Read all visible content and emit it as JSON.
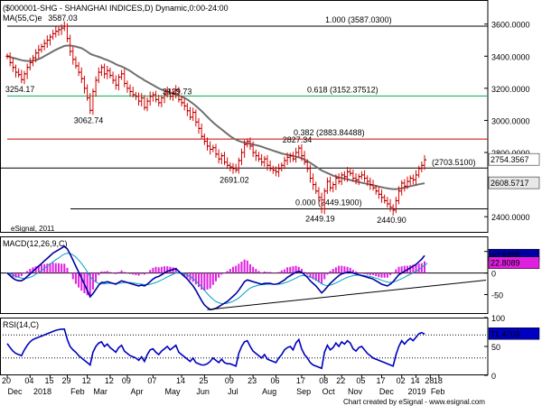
{
  "chart_data": [
    {
      "type": "line",
      "panel": "price",
      "title": "($000001-SHG - SHANGHAI INDICES,D) Dynamic,0:00-24:00",
      "ma_label": "MA(55,C)e",
      "watermark": "eSignal, 2011",
      "ylim": [
        2300,
        3750
      ],
      "y_ticks": [
        {
          "v": 3600,
          "text": "3600.0000"
        },
        {
          "v": 3400,
          "text": "3400.0000"
        },
        {
          "v": 3200,
          "text": "3200.0000"
        },
        {
          "v": 3000,
          "text": "3000.0000"
        },
        {
          "v": 2800,
          "text": "2800.0000"
        },
        {
          "v": 2400,
          "text": "2400.0000"
        }
      ],
      "last_price": {
        "v": 2754.3567,
        "text": "2754.3567"
      },
      "ma_last": {
        "v": 2608.5717,
        "text": "2608.5717"
      },
      "fib_levels": [
        {
          "v": 3587.03,
          "text": "1.000 (3587.0300)",
          "color": "#000000"
        },
        {
          "v": 3152.37512,
          "text": "0.618 (3152.37512)",
          "color": "#00b050"
        },
        {
          "v": 2883.84488,
          "text": "0.382 (2883.84488)",
          "color": "#cc0000"
        },
        {
          "v": 2449.19,
          "text": "0.000 (2449.1900)",
          "color": "#000000"
        }
      ],
      "resistance": {
        "v": 2703.51,
        "text": "(2703.5100)"
      },
      "annotations": [
        {
          "i": 20,
          "v": 3587.03,
          "text": "3587.03",
          "pos": "above"
        },
        {
          "i": 5,
          "v": 3254.17,
          "text": "3254.17",
          "pos": "below"
        },
        {
          "i": 29,
          "v": 3062.74,
          "text": "3062.74",
          "pos": "below"
        },
        {
          "i": 60,
          "v": 3129.73,
          "text": "3129.73",
          "pos": "above"
        },
        {
          "i": 80,
          "v": 2691.02,
          "text": "2691.02",
          "pos": "below"
        },
        {
          "i": 102,
          "v": 2827.34,
          "text": "2827.34",
          "pos": "above"
        },
        {
          "i": 110,
          "v": 2449.19,
          "text": "2449.19",
          "pos": "below"
        },
        {
          "i": 135,
          "v": 2440.9,
          "text": "2440.90",
          "pos": "below"
        }
      ],
      "price_series": [
        3400,
        3360,
        3330,
        3300,
        3285,
        3254.17,
        3290,
        3330,
        3360,
        3390,
        3420,
        3440,
        3460,
        3480,
        3500,
        3520,
        3540,
        3555,
        3565,
        3575,
        3587.03,
        3510,
        3430,
        3380,
        3340,
        3300,
        3260,
        3200,
        3140,
        3062.74,
        3180,
        3250,
        3300,
        3330,
        3290,
        3310,
        3280,
        3250,
        3220,
        3270,
        3290,
        3230,
        3200,
        3180,
        3160,
        3150,
        3120,
        3140,
        3080,
        3120,
        3150,
        3160,
        3130,
        3110,
        3140,
        3160,
        3180,
        3150,
        3170,
        3190,
        3129.73,
        3110,
        3090,
        3060,
        3020,
        3050,
        2990,
        2950,
        2900,
        2870,
        2840,
        2820,
        2830,
        2790,
        2760,
        2780,
        2740,
        2720,
        2710,
        2700,
        2691.02,
        2750,
        2800,
        2850,
        2870,
        2840,
        2800,
        2780,
        2760,
        2740,
        2760,
        2720,
        2700,
        2690,
        2680,
        2700,
        2720,
        2750,
        2770,
        2780,
        2760,
        2800,
        2827.34,
        2780,
        2740,
        2700,
        2640,
        2600,
        2560,
        2520,
        2449.19,
        2560,
        2620,
        2580,
        2600,
        2640,
        2620,
        2660,
        2650,
        2680,
        2670,
        2640,
        2630,
        2650,
        2660,
        2640,
        2620,
        2600,
        2580,
        2560,
        2540,
        2520,
        2500,
        2480,
        2460,
        2440.9,
        2500,
        2560,
        2610,
        2590,
        2620,
        2640,
        2630,
        2660,
        2700,
        2720,
        2754.3567
      ],
      "ma_series": [
        3400,
        3395,
        3390,
        3385,
        3380,
        3375,
        3372,
        3370,
        3370,
        3372,
        3376,
        3382,
        3390,
        3400,
        3410,
        3420,
        3430,
        3440,
        3448,
        3456,
        3464,
        3466,
        3466,
        3464,
        3460,
        3455,
        3450,
        3440,
        3428,
        3415,
        3408,
        3402,
        3396,
        3390,
        3382,
        3376,
        3368,
        3360,
        3350,
        3342,
        3336,
        3328,
        3318,
        3308,
        3296,
        3284,
        3272,
        3262,
        3250,
        3240,
        3230,
        3220,
        3210,
        3200,
        3192,
        3186,
        3180,
        3174,
        3168,
        3162,
        3156,
        3148,
        3140,
        3130,
        3118,
        3104,
        3090,
        3074,
        3058,
        3040,
        3022,
        3004,
        2988,
        2972,
        2958,
        2944,
        2930,
        2916,
        2902,
        2890,
        2880,
        2872,
        2866,
        2862,
        2858,
        2854,
        2850,
        2846,
        2842,
        2836,
        2830,
        2824,
        2818,
        2812,
        2806,
        2800,
        2794,
        2790,
        2786,
        2782,
        2778,
        2774,
        2770,
        2764,
        2756,
        2746,
        2736,
        2724,
        2712,
        2700,
        2688,
        2680,
        2672,
        2664,
        2656,
        2650,
        2645,
        2641,
        2637,
        2633,
        2629,
        2624,
        2620,
        2616,
        2612,
        2608,
        2604,
        2600,
        2596,
        2592,
        2588,
        2584,
        2580,
        2577,
        2574,
        2572,
        2572,
        2574,
        2577,
        2581,
        2585,
        2590,
        2594,
        2598,
        2602,
        2605,
        2608.5717
      ]
    },
    {
      "type": "line",
      "panel": "macd",
      "title": "MACD(12,26,9,C)",
      "ylim": [
        -95,
        85
      ],
      "y_ticks": [
        {
          "v": 50,
          "text": "50"
        },
        {
          "v": 0,
          "text": "0"
        },
        {
          "v": -50,
          "text": "-50"
        }
      ],
      "macd_last": {
        "v": 40.6458,
        "text": "40.6458"
      },
      "signal_last": {
        "v": 22.8089,
        "text": "22.8089"
      },
      "trendline": {
        "from": [
          70,
          -85
        ],
        "to": [
          158,
          -25
        ]
      },
      "macd_series": [
        0,
        -6,
        -12,
        -16,
        -18,
        -18,
        -14,
        -8,
        -2,
        4,
        10,
        16,
        22,
        28,
        34,
        40,
        46,
        50,
        54,
        58,
        62,
        56,
        44,
        30,
        16,
        2,
        -12,
        -26,
        -40,
        -55,
        -48,
        -38,
        -28,
        -22,
        -22,
        -20,
        -22,
        -24,
        -26,
        -22,
        -18,
        -20,
        -22,
        -24,
        -26,
        -28,
        -30,
        -28,
        -30,
        -26,
        -20,
        -14,
        -10,
        -8,
        -4,
        0,
        4,
        6,
        8,
        10,
        4,
        -2,
        -8,
        -14,
        -22,
        -30,
        -40,
        -52,
        -64,
        -74,
        -80,
        -85,
        -84,
        -82,
        -78,
        -74,
        -70,
        -66,
        -60,
        -54,
        -48,
        -40,
        -30,
        -20,
        -16,
        -18,
        -20,
        -22,
        -24,
        -26,
        -24,
        -24,
        -24,
        -26,
        -26,
        -24,
        -20,
        -16,
        -10,
        -6,
        -2,
        2,
        4,
        2,
        -4,
        -10,
        -18,
        -24,
        -30,
        -38,
        -46,
        -40,
        -32,
        -24,
        -18,
        -12,
        -6,
        -2,
        0,
        2,
        2,
        0,
        -2,
        -4,
        -6,
        -8,
        -10,
        -12,
        -14,
        -18,
        -22,
        -26,
        -28,
        -30,
        -26,
        -20,
        -12,
        -4,
        0,
        4,
        8,
        12,
        16,
        20,
        26,
        32,
        40.6458
      ],
      "signal_series": [
        0,
        -1,
        -4,
        -7,
        -10,
        -12,
        -13,
        -12,
        -10,
        -7,
        -3,
        1,
        6,
        11,
        16,
        21,
        26,
        31,
        35,
        40,
        44,
        46,
        45,
        42,
        37,
        30,
        22,
        13,
        3,
        -8,
        -16,
        -21,
        -24,
        -25,
        -25,
        -24,
        -24,
        -24,
        -24,
        -24,
        -23,
        -22,
        -22,
        -22,
        -23,
        -24,
        -25,
        -26,
        -27,
        -27,
        -26,
        -24,
        -22,
        -19,
        -16,
        -13,
        -9,
        -6,
        -3,
        0,
        1,
        0,
        -2,
        -5,
        -8,
        -13,
        -18,
        -25,
        -32,
        -40,
        -48,
        -55,
        -61,
        -66,
        -69,
        -71,
        -71,
        -70,
        -68,
        -66,
        -62,
        -58,
        -52,
        -46,
        -40,
        -35,
        -32,
        -30,
        -28,
        -27,
        -27,
        -26,
        -26,
        -26,
        -26,
        -26,
        -25,
        -23,
        -21,
        -18,
        -15,
        -12,
        -8,
        -6,
        -6,
        -7,
        -9,
        -12,
        -15,
        -20,
        -25,
        -28,
        -29,
        -28,
        -26,
        -23,
        -20,
        -16,
        -13,
        -10,
        -8,
        -6,
        -5,
        -5,
        -5,
        -6,
        -7,
        -8,
        -10,
        -12,
        -14,
        -17,
        -19,
        -21,
        -22,
        -21,
        -19,
        -16,
        -13,
        -10,
        -6,
        -3,
        0,
        4,
        8,
        13,
        18,
        22.8089
      ]
    },
    {
      "type": "line",
      "panel": "rsi",
      "title": "RSI(14,C)",
      "ylim": [
        0,
        100
      ],
      "y_ticks": [
        {
          "v": 100,
          "text": "100"
        },
        {
          "v": 50,
          "text": "50"
        },
        {
          "v": 0,
          "text": "0"
        }
      ],
      "levels": [
        70,
        30
      ],
      "rsi_last": {
        "v": 71.4703,
        "text": "71.4703"
      },
      "rsi_series": [
        55,
        48,
        42,
        38,
        36,
        34,
        44,
        52,
        58,
        62,
        64,
        66,
        68,
        70,
        72,
        74,
        76,
        78,
        79,
        80,
        80,
        62,
        50,
        44,
        40,
        34,
        30,
        26,
        22,
        18,
        40,
        50,
        56,
        58,
        50,
        54,
        48,
        44,
        40,
        48,
        52,
        42,
        38,
        34,
        32,
        30,
        26,
        32,
        24,
        36,
        44,
        46,
        40,
        36,
        42,
        46,
        50,
        44,
        48,
        52,
        40,
        36,
        32,
        28,
        24,
        30,
        22,
        20,
        18,
        18,
        20,
        24,
        30,
        26,
        22,
        28,
        22,
        20,
        20,
        18,
        16,
        38,
        50,
        58,
        60,
        50,
        42,
        38,
        34,
        30,
        36,
        28,
        26,
        24,
        22,
        30,
        36,
        44,
        48,
        50,
        44,
        56,
        62,
        46,
        36,
        30,
        22,
        18,
        16,
        14,
        12,
        40,
        52,
        44,
        48,
        56,
        50,
        58,
        54,
        60,
        56,
        46,
        42,
        48,
        50,
        44,
        38,
        34,
        30,
        28,
        26,
        24,
        22,
        20,
        18,
        16,
        36,
        50,
        60,
        54,
        60,
        64,
        60,
        66,
        72,
        74,
        71.4703
      ]
    },
    {
      "type": "axis",
      "panel": "time",
      "day_ticks": [
        {
          "i": 0,
          "text": "20"
        },
        {
          "i": 8,
          "text": "04"
        },
        {
          "i": 15,
          "text": "15"
        },
        {
          "i": 21,
          "text": "29"
        },
        {
          "i": 28,
          "text": "12"
        },
        {
          "i": 36,
          "text": "12"
        },
        {
          "i": 42,
          "text": "09"
        },
        {
          "i": 51,
          "text": "07"
        },
        {
          "i": 61,
          "text": "14"
        },
        {
          "i": 69,
          "text": "25"
        },
        {
          "i": 78,
          "text": "09"
        },
        {
          "i": 86,
          "text": "23"
        },
        {
          "i": 94,
          "text": "06"
        },
        {
          "i": 103,
          "text": "17"
        },
        {
          "i": 111,
          "text": "08"
        },
        {
          "i": 117,
          "text": "22"
        },
        {
          "i": 124,
          "text": "05"
        },
        {
          "i": 131,
          "text": "17"
        },
        {
          "i": 138,
          "text": "02"
        },
        {
          "i": 143,
          "text": "14"
        },
        {
          "i": 148,
          "text": "28"
        },
        {
          "i": 151,
          "text": "18"
        }
      ],
      "month_ticks": [
        {
          "i": 3,
          "text": "Dec"
        },
        {
          "i": 12,
          "text": "2018"
        },
        {
          "i": 25,
          "text": "Feb"
        },
        {
          "i": 33,
          "text": "Mar"
        },
        {
          "i": 46,
          "text": "Apr"
        },
        {
          "i": 58,
          "text": "May"
        },
        {
          "i": 69,
          "text": "Jun"
        },
        {
          "i": 80,
          "text": "Jul"
        },
        {
          "i": 92,
          "text": "Aug"
        },
        {
          "i": 104,
          "text": "Sep"
        },
        {
          "i": 113,
          "text": "Oct"
        },
        {
          "i": 122,
          "text": "Nov"
        },
        {
          "i": 133,
          "text": "Dec"
        },
        {
          "i": 143,
          "text": "2019"
        },
        {
          "i": 151,
          "text": "Feb"
        }
      ],
      "credit": "Chart created by eSignal - www.esignal.com"
    }
  ]
}
